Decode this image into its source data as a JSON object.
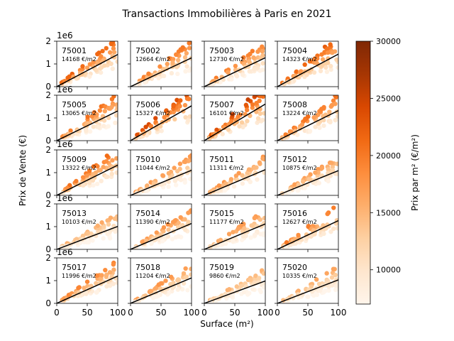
{
  "chart_data": {
    "type": "scatter",
    "title": "Transactions Immobilières à Paris en 2021",
    "xlabel": "Surface (m²)",
    "ylabel": "Prix de Vente (€)",
    "y_multiplier_label": "1e6",
    "xlim": [
      0,
      100
    ],
    "ylim": [
      0,
      2
    ],
    "x_ticks": [
      "0",
      "50",
      "100"
    ],
    "y_ticks": [
      "0",
      "1",
      "2"
    ],
    "grid": false,
    "colorbar": {
      "label": "Prix par m² (€/m²)",
      "range": [
        7000,
        30000
      ],
      "ticks": [
        "10000",
        "15000",
        "20000",
        "25000",
        "30000"
      ],
      "tick_values": [
        10000,
        15000,
        20000,
        25000,
        30000
      ],
      "colormap": [
        "#fff5eb",
        "#fee6ce",
        "#fdd0a2",
        "#fdae6b",
        "#fd8d3c",
        "#f16913",
        "#d94801",
        "#a63603",
        "#7f2704"
      ]
    },
    "line_color": "#000000",
    "layout_rows": 5,
    "layout_cols": 4,
    "panels": [
      {
        "arrondissement": "75001",
        "avg_price": "14168 €/m2",
        "avg_value": 14168
      },
      {
        "arrondissement": "75002",
        "avg_price": "12664 €/m2",
        "avg_value": 12664
      },
      {
        "arrondissement": "75003",
        "avg_price": "12730 €/m2",
        "avg_value": 12730
      },
      {
        "arrondissement": "75004",
        "avg_price": "14323 €/m2",
        "avg_value": 14323
      },
      {
        "arrondissement": "75005",
        "avg_price": "13065 €/m2",
        "avg_value": 13065
      },
      {
        "arrondissement": "75006",
        "avg_price": "15327 €/m2",
        "avg_value": 15327
      },
      {
        "arrondissement": "75007",
        "avg_price": "16101 €/m2",
        "avg_value": 16101
      },
      {
        "arrondissement": "75008",
        "avg_price": "13224 €/m2",
        "avg_value": 13224
      },
      {
        "arrondissement": "75009",
        "avg_price": "13322 €/m2",
        "avg_value": 13322
      },
      {
        "arrondissement": "75010",
        "avg_price": "11044 €/m2",
        "avg_value": 11044
      },
      {
        "arrondissement": "75011",
        "avg_price": "11311 €/m2",
        "avg_value": 11311
      },
      {
        "arrondissement": "75012",
        "avg_price": "10875 €/m2",
        "avg_value": 10875
      },
      {
        "arrondissement": "75013",
        "avg_price": "10103 €/m2",
        "avg_value": 10103
      },
      {
        "arrondissement": "75014",
        "avg_price": "11390 €/m2",
        "avg_value": 11390
      },
      {
        "arrondissement": "75015",
        "avg_price": "11177 €/m2",
        "avg_value": 11177
      },
      {
        "arrondissement": "75016",
        "avg_price": "12627 €/m2",
        "avg_value": 12627
      },
      {
        "arrondissement": "75017",
        "avg_price": "11996 €/m2",
        "avg_value": 11996
      },
      {
        "arrondissement": "75018",
        "avg_price": "11204 €/m2",
        "avg_value": 11204
      },
      {
        "arrondissement": "75019",
        "avg_price": "9860 €/m2",
        "avg_value": 9860
      },
      {
        "arrondissement": "75020",
        "avg_price": "10335 €/m2",
        "avg_value": 10335
      }
    ]
  }
}
